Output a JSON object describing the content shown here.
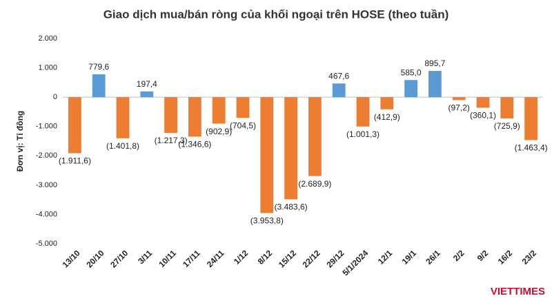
{
  "chart_data": {
    "type": "bar",
    "title": "Giao dịch mua/bán ròng của khối ngoại trên HOSE (theo tuần)",
    "y_label": "Đơn vị: Tỉ đồng",
    "categories": [
      "13/10",
      "20/10",
      "27/10",
      "3/11",
      "10/11",
      "17/11",
      "24/11",
      "1/12",
      "8/12",
      "15/12",
      "22/12",
      "29/12",
      "5/1/2024",
      "12/1",
      "19/1",
      "26/1",
      "2/2",
      "9/2",
      "16/2",
      "23/2"
    ],
    "values": [
      -1911.6,
      779.6,
      -1401.8,
      197.4,
      -1217.3,
      -1346.6,
      -902.9,
      -704.5,
      -3953.8,
      -3483.6,
      -2689.9,
      467.6,
      -1001.3,
      -412.9,
      585.0,
      895.7,
      -97.2,
      -360.1,
      -725.9,
      -1463.4
    ],
    "value_labels": [
      "(1.911,6)",
      "779,6",
      "(1.401,8)",
      "197,4",
      "(1.217,3)",
      "(1.346,6)",
      "(902,9)",
      "(704,5)",
      "(3.953,8)",
      "(3.483,6)",
      "(2.689,9)",
      "467,6",
      "(1.001,3)",
      "(412,9)",
      "585,0",
      "895,7",
      "(97,2)",
      "(360,1)",
      "(725,9)",
      "(1.463,4)"
    ],
    "color_positive": "#5b9bd5",
    "color_negative": "#ed7d31",
    "ylim": [
      -5000,
      2000
    ],
    "yticks": [
      {
        "value": 2000,
        "label": "2.000"
      },
      {
        "value": 1000,
        "label": "1.000"
      },
      0,
      {
        "value": -1000,
        "label": "-1.000"
      },
      {
        "value": -2000,
        "label": "-2.000"
      },
      {
        "value": -3000,
        "label": "-3.000"
      },
      {
        "value": -4000,
        "label": "-4.000"
      },
      {
        "value": -5000,
        "label": "-5.000"
      }
    ],
    "grid": false
  },
  "logo": "VIETTIMES"
}
